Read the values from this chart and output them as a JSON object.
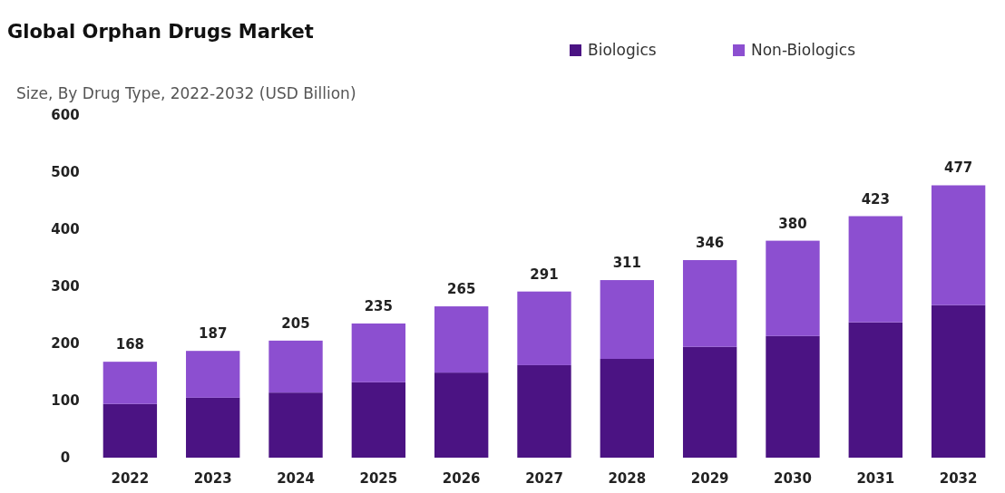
{
  "chart_data": {
    "type": "bar",
    "title": "Global Orphan Drugs Market",
    "subtitle": "Size, By Drug Type, 2022-2032 (USD Billion)",
    "categories": [
      "2022",
      "2023",
      "2024",
      "2025",
      "2026",
      "2027",
      "2028",
      "2029",
      "2030",
      "2031",
      "2032"
    ],
    "series": [
      {
        "name": "Biologics",
        "color": "#4b1383",
        "values": [
          94,
          105,
          114,
          132,
          149,
          162,
          173,
          194,
          213,
          237,
          267
        ]
      },
      {
        "name": "Non-Biologics",
        "color": "#8c4fd0",
        "values": [
          74,
          82,
          91,
          103,
          116,
          129,
          138,
          152,
          167,
          186,
          210
        ]
      }
    ],
    "stacked": true,
    "totals": [
      "168",
      "187",
      "205",
      "235",
      "265",
      "291",
      "311",
      "346",
      "380",
      "423",
      "477"
    ],
    "ylim": [
      0,
      600
    ],
    "yticks": [
      0,
      100,
      200,
      300,
      400,
      500,
      600
    ],
    "grid": false,
    "legend": "top right"
  }
}
